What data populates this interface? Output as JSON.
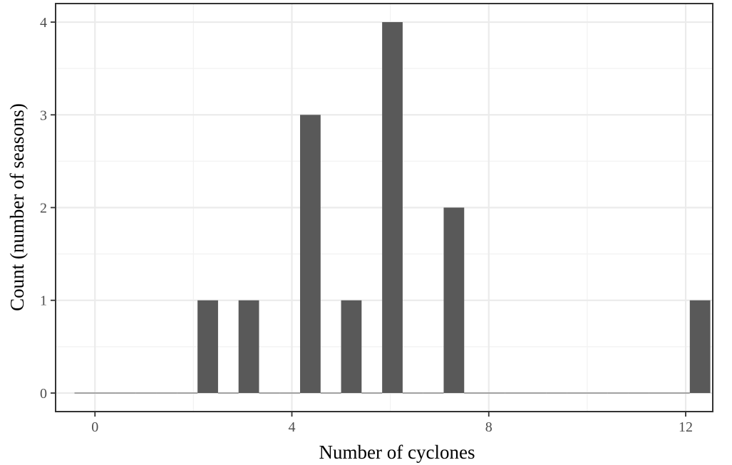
{
  "chart_data": {
    "type": "bar",
    "title": "",
    "xlabel": "Number of cyclones",
    "ylabel": "Count (number of seasons)",
    "xlim": [
      -0.8,
      12.55
    ],
    "ylim": [
      -0.2,
      4.2
    ],
    "x_ticks": [
      0,
      4,
      8,
      12
    ],
    "y_ticks": [
      0,
      1,
      2,
      3,
      4
    ],
    "bin_width": 0.4167,
    "bin_centers": [
      -0.208,
      0.208,
      0.625,
      1.042,
      1.458,
      1.875,
      2.292,
      2.708,
      3.125,
      3.542,
      3.958,
      4.375,
      4.792,
      5.208,
      5.625,
      6.042,
      6.458,
      6.875,
      7.292,
      7.708,
      8.125,
      8.542,
      8.958,
      9.375,
      9.792,
      10.208,
      10.625,
      11.042,
      11.458,
      11.875,
      12.292
    ],
    "values": [
      0,
      0,
      0,
      0,
      0,
      0,
      1,
      0,
      1,
      0,
      0,
      3,
      0,
      1,
      0,
      4,
      0,
      0,
      2,
      0,
      0,
      0,
      0,
      0,
      0,
      0,
      0,
      0,
      0,
      0,
      1
    ],
    "bar_color": "#595959",
    "grid": true,
    "panel_border": true,
    "theme": "bw"
  }
}
